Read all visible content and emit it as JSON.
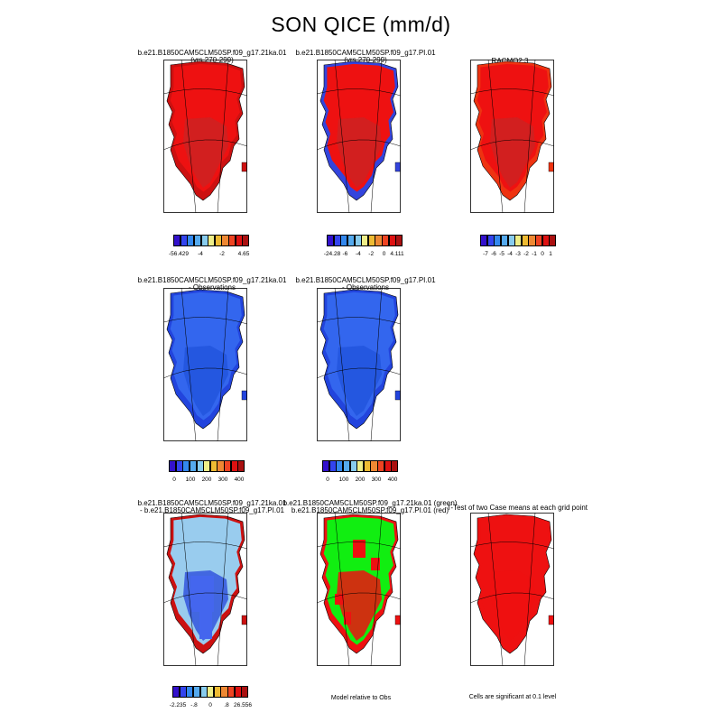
{
  "title": "SON QICE (mm/d)",
  "panels": [
    {
      "id": "r1c1",
      "line1": "b.e21.B1850CAM5CLM50SP.f09_g17.21ka.01",
      "line2": "(yrs 270-299)",
      "fill": "#ee1111",
      "edge": "#cc1111",
      "inner": "#cc2222",
      "style": "red"
    },
    {
      "id": "r1c2",
      "line1": "b.e21.B1850CAM5CLM50SP.f09_g17.PI.01",
      "line2": "(yrs 270-299)",
      "fill": "#ee1111",
      "edge": "#3344dd",
      "inner": "#cc2222",
      "style": "red-edge"
    },
    {
      "id": "r1c3",
      "line1": "RACMO2.3",
      "line2": "",
      "fill": "#ee1111",
      "edge": "#ee3311",
      "inner": "#cc2222",
      "style": "red"
    },
    {
      "id": "r2c1",
      "line1": "b.e21.B1850CAM5CLM50SP.f09_g17.21ka.01",
      "line2": "- Observations",
      "fill": "#3366ee",
      "edge": "#2244dd",
      "inner": "#2255dd",
      "style": "blue"
    },
    {
      "id": "r2c2",
      "line1": "b.e21.B1850CAM5CLM50SP.f09_g17.PI.01",
      "line2": "- Observations",
      "fill": "#3366ee",
      "edge": "#2244dd",
      "inner": "#2255dd",
      "style": "blue"
    },
    {
      "id": "r3c1",
      "line1": "b.e21.B1850CAM5CLM50SP.f09_g17.21ka.01",
      "line2": "- b.e21.B1850CAM5CLM50SP.f09_g17.PI.01",
      "fill": "#99ccee",
      "edge": "#cc1111",
      "inner": "#3355dd",
      "style": "diff"
    },
    {
      "id": "r3c2",
      "line1": "b.e21.B1850CAM5CLM50SP.f09_g17.21ka.01 (green)",
      "line2": "b.e21.B1850CAM5CLM50SP.f09_g17.PI.01 (red)",
      "fill": "#11ee11",
      "edge": "#ee1111",
      "inner": "#ee1111",
      "style": "green"
    },
    {
      "id": "r3c3",
      "line1": "T-Test of two Case means at each grid point",
      "line2": "",
      "fill": "#ee1111",
      "edge": "#ee1111",
      "inner": "#ee1111",
      "style": "ttest"
    }
  ],
  "colorbars": [
    {
      "id": "cb1",
      "labels": [
        "-56.429",
        "-4",
        "-2",
        "4.65"
      ],
      "colors": [
        "#3311cc",
        "#3344ee",
        "#3388ee",
        "#55aaee",
        "#88ccee",
        "#eeee88",
        "#eebb33",
        "#ee8833",
        "#ee4422",
        "#dd1111",
        "#aa1111"
      ]
    },
    {
      "id": "cb2",
      "labels": [
        "-24.28",
        "-6",
        "-4",
        "-2",
        "0",
        "4.111"
      ],
      "colors": [
        "#3311cc",
        "#3344ee",
        "#3388ee",
        "#55aaee",
        "#88ccee",
        "#eeee88",
        "#eebb33",
        "#ee8833",
        "#ee4422",
        "#dd1111",
        "#aa1111"
      ]
    },
    {
      "id": "cb3",
      "labels": [
        "-7",
        "-6",
        "-5",
        "-4",
        "-3",
        "-2",
        "-1",
        "0",
        "1"
      ],
      "colors": [
        "#3311cc",
        "#3344ee",
        "#3388ee",
        "#55aaee",
        "#88ccee",
        "#eeee88",
        "#eebb33",
        "#ee8833",
        "#ee4422",
        "#dd1111",
        "#aa1111"
      ]
    },
    {
      "id": "cb4",
      "labels": [
        "0",
        "100",
        "200",
        "300",
        "400"
      ],
      "colors": [
        "#3311cc",
        "#3344ee",
        "#3388ee",
        "#55aaee",
        "#88ccee",
        "#eeee88",
        "#eebb33",
        "#ee8833",
        "#ee4422",
        "#dd1111",
        "#aa1111"
      ]
    },
    {
      "id": "cb5",
      "labels": [
        "0",
        "100",
        "200",
        "300",
        "400"
      ],
      "colors": [
        "#3311cc",
        "#3344ee",
        "#3388ee",
        "#55aaee",
        "#88ccee",
        "#eeee88",
        "#eebb33",
        "#ee8833",
        "#ee4422",
        "#dd1111",
        "#aa1111"
      ]
    },
    {
      "id": "cb6",
      "labels": [
        "-2.235",
        "-.8",
        "0",
        ".8",
        "26.556"
      ],
      "colors": [
        "#3311cc",
        "#3344ee",
        "#3388ee",
        "#55aaee",
        "#88ccee",
        "#eeee88",
        "#eebb33",
        "#ee8833",
        "#ee4422",
        "#dd1111",
        "#aa1111"
      ]
    }
  ],
  "notes": {
    "model_relative": "Model relative to Obs",
    "significance": "Cells are significant at 0.1 level"
  }
}
